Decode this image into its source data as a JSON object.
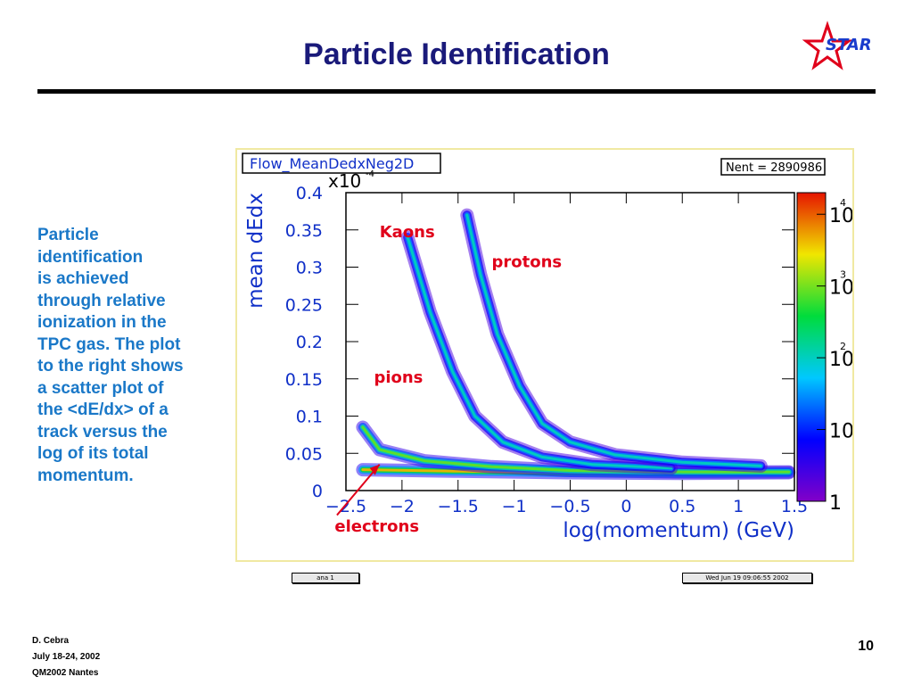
{
  "slide": {
    "title": "Particle Identification",
    "description": "Particle\nidentification\nis achieved\nthrough relative\nionization in the\nTPC gas. The plot\nto the right shows\na scatter plot of\nthe <dE/dx> of a\ntrack versus the\nlog of its total\nmomentum.",
    "logo_text": "STAR",
    "page_number": "10",
    "footer": {
      "author": "D. Cebra",
      "dates": "July 18-24, 2002",
      "conference": "QM2002 Nantes"
    },
    "colors": {
      "title": "#1a1a7a",
      "text": "#1a78c8",
      "annotation": "#e0001a",
      "axis": "#1030c8"
    }
  },
  "chart_data": {
    "type": "heatmap",
    "title": "Flow_MeanDedxNeg2D",
    "stats": "Nent = 2890986",
    "xlabel": "log(momentum) (GeV)",
    "ylabel": "mean dEdx",
    "y_multiplier": "x10",
    "y_multiplier_exp": "-4",
    "xlim": [
      -2.5,
      1.5
    ],
    "ylim": [
      0,
      0.4
    ],
    "x_ticks": [
      "−2.5",
      "−2",
      "−1.5",
      "−1",
      "−0.5",
      "0",
      "0.5",
      "1",
      "1.5"
    ],
    "x_tick_values": [
      -2.5,
      -2,
      -1.5,
      -1,
      -0.5,
      0,
      0.5,
      1,
      1.5
    ],
    "y_ticks": [
      "0",
      "0.05",
      "0.1",
      "0.15",
      "0.2",
      "0.25",
      "0.3",
      "0.35",
      "0.4"
    ],
    "y_tick_values": [
      0,
      0.05,
      0.1,
      0.15,
      0.2,
      0.25,
      0.3,
      0.35,
      0.4
    ],
    "colorbar": {
      "scale": "log",
      "labels": [
        {
          "base": "10",
          "exp": "4",
          "value": 10000
        },
        {
          "base": "10",
          "exp": "3",
          "value": 1000
        },
        {
          "base": "10",
          "exp": "2",
          "value": 100
        },
        {
          "base": "10",
          "exp": "",
          "value": 10
        },
        {
          "base": "1",
          "exp": "",
          "value": 1
        }
      ]
    },
    "bands": [
      {
        "name": "electrons",
        "points": [
          [
            -2.35,
            0.028
          ],
          [
            -1.5,
            0.026
          ],
          [
            -0.5,
            0.024
          ],
          [
            0.5,
            0.023
          ],
          [
            1.45,
            0.024
          ]
        ]
      },
      {
        "name": "pions",
        "points": [
          [
            -2.35,
            0.085
          ],
          [
            -2.2,
            0.055
          ],
          [
            -1.8,
            0.04
          ],
          [
            -1.2,
            0.032
          ],
          [
            -0.5,
            0.027
          ],
          [
            0.5,
            0.025
          ],
          [
            1.45,
            0.025
          ]
        ]
      },
      {
        "name": "Kaons",
        "points": [
          [
            -1.95,
            0.34
          ],
          [
            -1.75,
            0.24
          ],
          [
            -1.55,
            0.16
          ],
          [
            -1.35,
            0.1
          ],
          [
            -1.1,
            0.065
          ],
          [
            -0.75,
            0.045
          ],
          [
            -0.3,
            0.035
          ],
          [
            0.4,
            0.03
          ]
        ]
      },
      {
        "name": "protons",
        "points": [
          [
            -1.42,
            0.37
          ],
          [
            -1.3,
            0.29
          ],
          [
            -1.15,
            0.21
          ],
          [
            -0.95,
            0.14
          ],
          [
            -0.75,
            0.09
          ],
          [
            -0.5,
            0.065
          ],
          [
            -0.1,
            0.048
          ],
          [
            0.5,
            0.038
          ],
          [
            1.2,
            0.033
          ]
        ]
      }
    ],
    "annotations": [
      {
        "text": "Kaons",
        "x": -2.2,
        "y": 0.34
      },
      {
        "text": "protons",
        "x": -1.2,
        "y": 0.3
      },
      {
        "text": "pions",
        "x": -2.25,
        "y": 0.145
      },
      {
        "text": "electrons",
        "x": -2.6,
        "y": -0.055
      }
    ],
    "histogram_labels": {
      "left": "ana 1",
      "right": "Wed Jun 19 09:06:55 2002"
    }
  }
}
